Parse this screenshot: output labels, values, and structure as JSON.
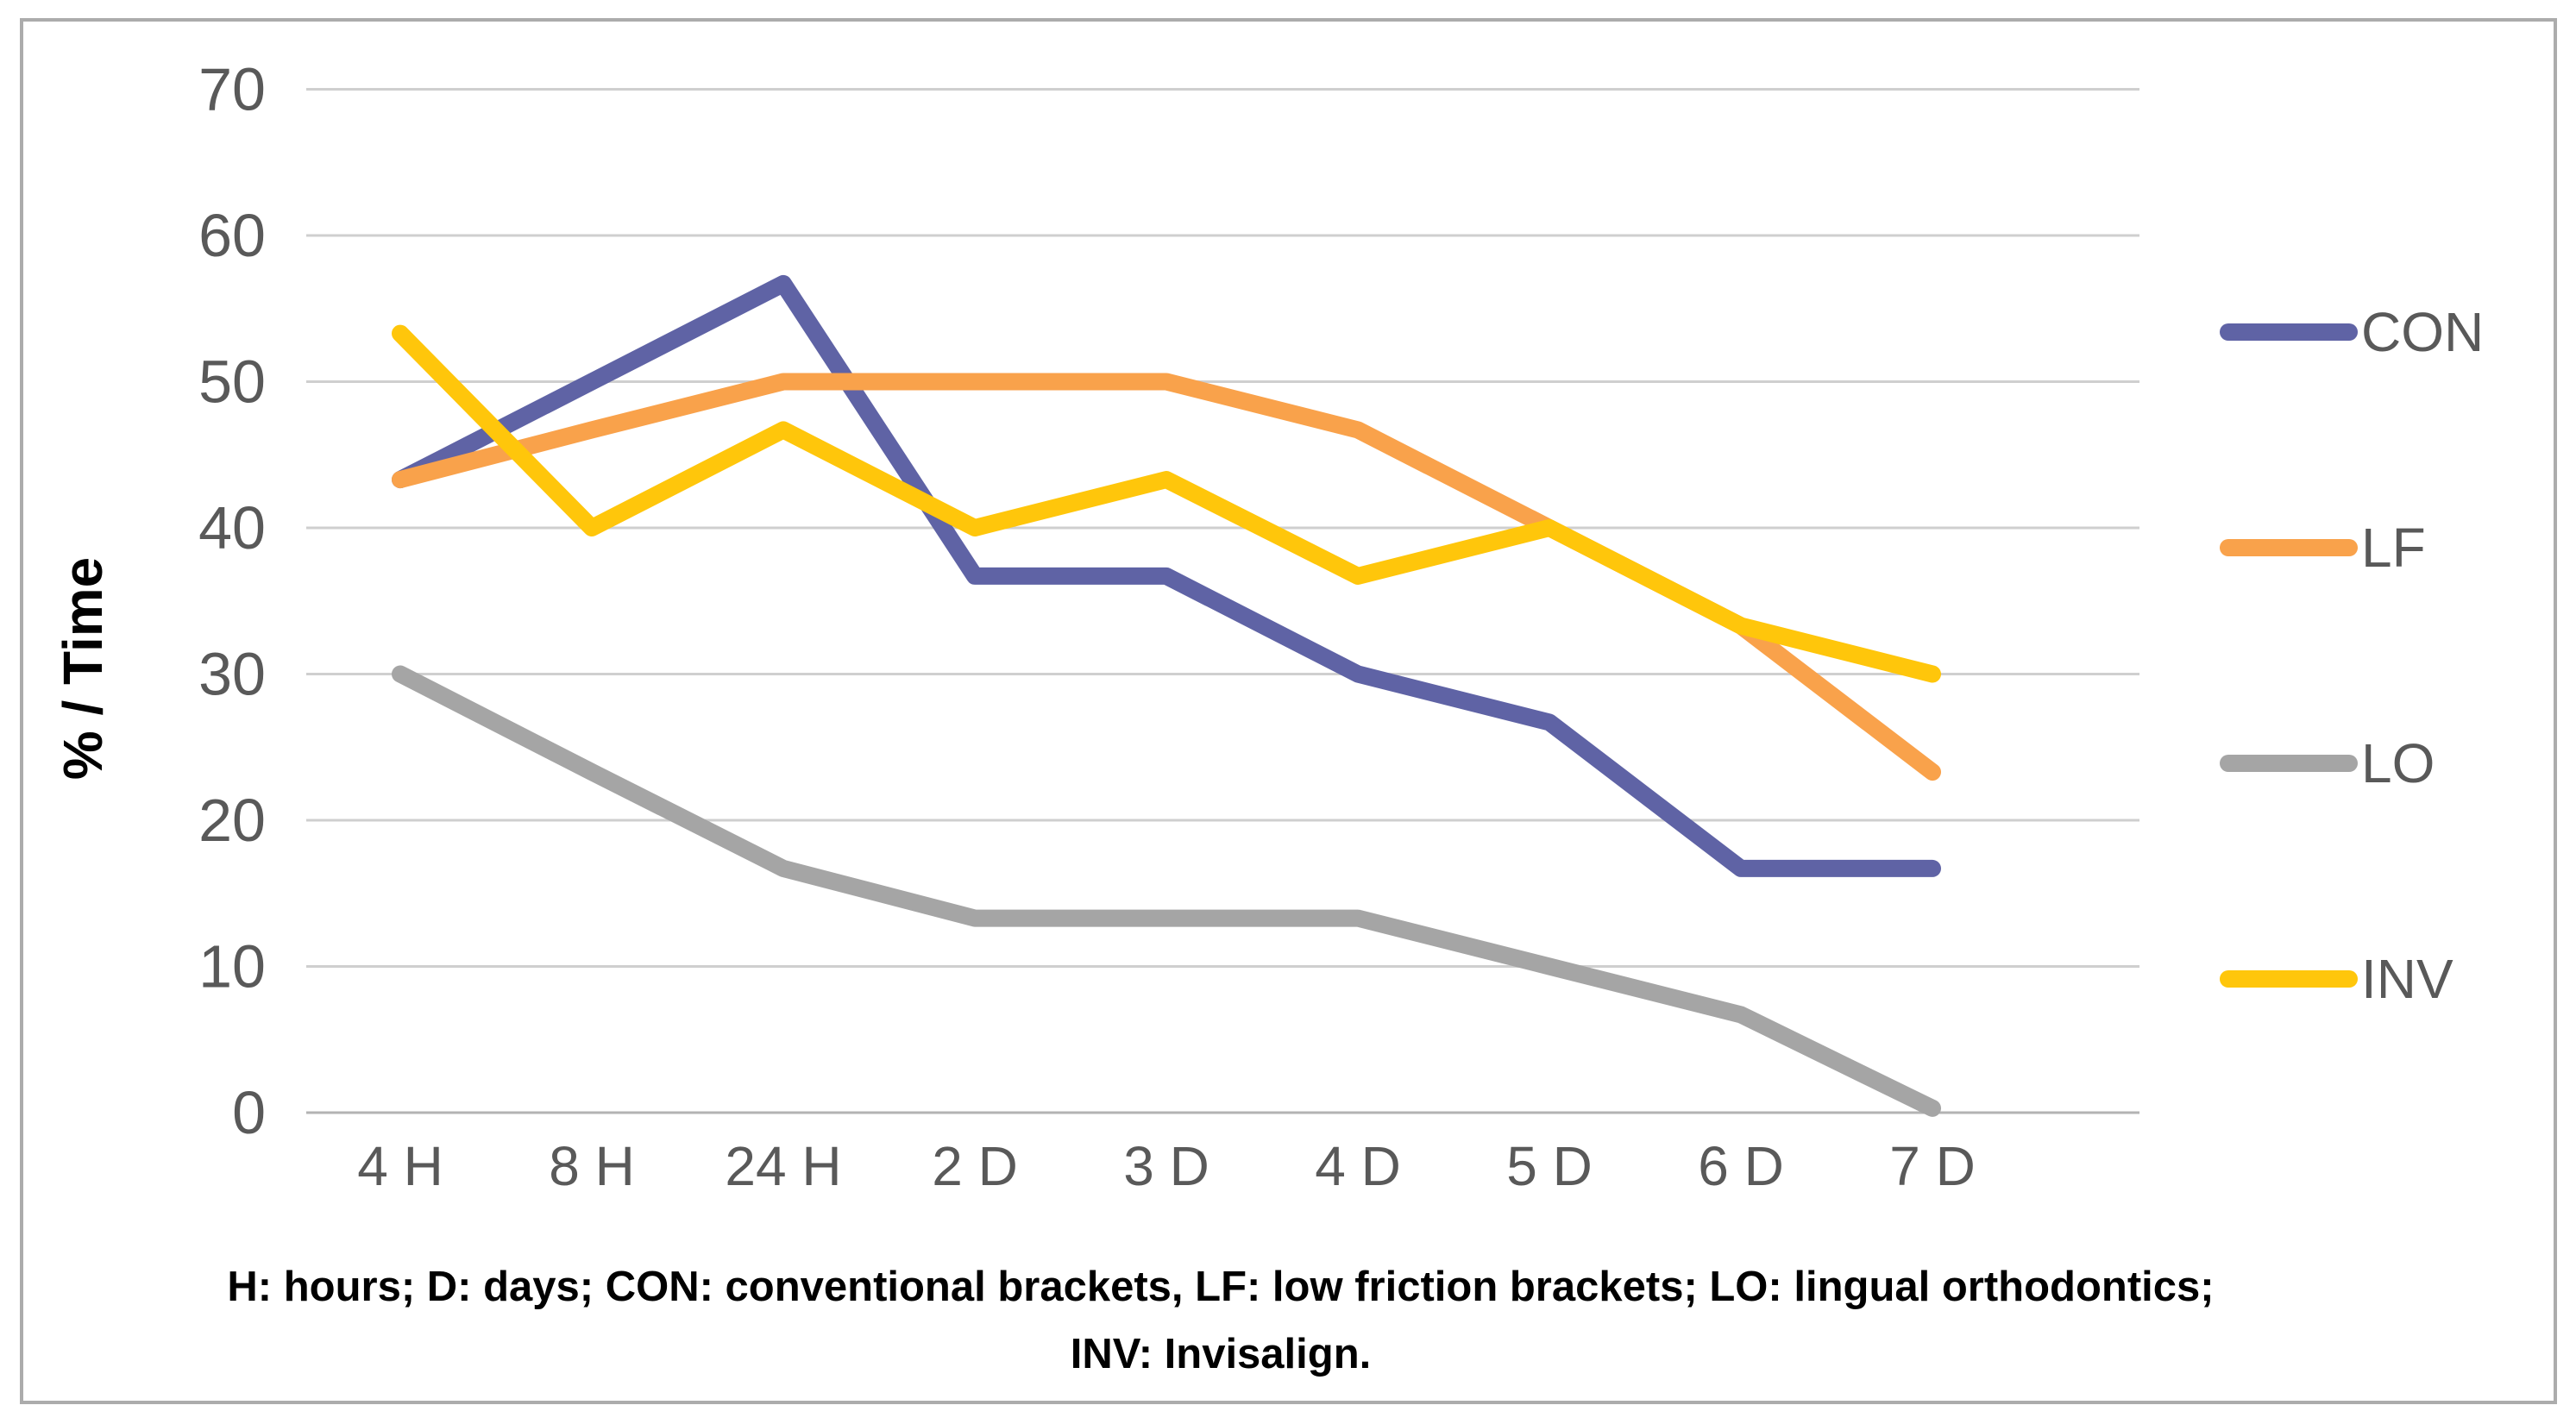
{
  "figure": {
    "y_axis_title": "% / Time",
    "caption_line1": "H: hours; D: days; CON: conventional brackets, LF: low friction brackets; LO: lingual orthodontics;",
    "caption_line2": "INV: Invisalign."
  },
  "colors": {
    "con": "#5f63a5",
    "lf": "#f9a24b",
    "lo": "#a5a5a5",
    "inv": "#ffc60b",
    "gridline": "#cfcfcf",
    "axis_line": "#b3b3b3",
    "figure_border": "#acacac",
    "tick_text": "#595959",
    "legend_text": "#595959"
  },
  "chart_data": {
    "type": "line",
    "title": "",
    "xlabel": "",
    "ylabel": "% / Time",
    "categories": [
      "4 H",
      "8 H",
      "24 H",
      "2 D",
      "3 D",
      "4 D",
      "5 D",
      "6 D",
      "7 D"
    ],
    "series": [
      {
        "name": "CON",
        "color_key": "con",
        "values": [
          43.3,
          50.0,
          56.7,
          36.7,
          36.7,
          30.0,
          26.7,
          16.7,
          16.7
        ]
      },
      {
        "name": "LF",
        "color_key": "lf",
        "values": [
          43.3,
          46.7,
          50.0,
          50.0,
          50.0,
          46.7,
          40.0,
          33.3,
          23.3
        ]
      },
      {
        "name": "LO",
        "color_key": "lo",
        "values": [
          30.0,
          23.3,
          16.7,
          13.3,
          13.3,
          13.3,
          10.0,
          6.7,
          0.3
        ]
      },
      {
        "name": "INV",
        "color_key": "inv",
        "values": [
          53.3,
          40.0,
          46.7,
          40.0,
          43.3,
          36.7,
          40.0,
          33.3,
          30.0
        ]
      }
    ],
    "ylim": [
      0,
      70
    ],
    "ytick_step": 10,
    "grid": true,
    "legend_position": "right"
  }
}
